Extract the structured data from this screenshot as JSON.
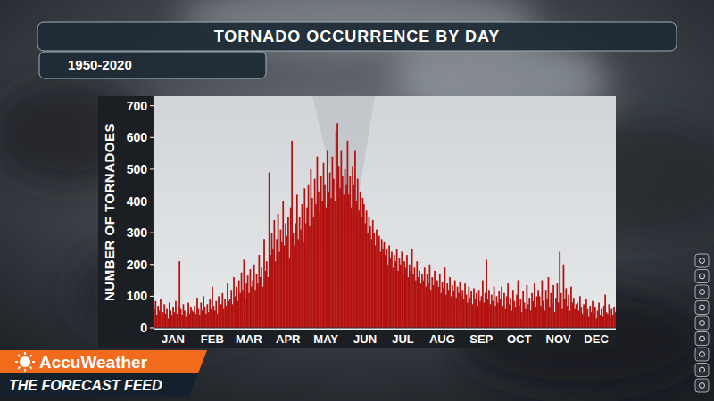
{
  "chart_data": {
    "type": "bar",
    "title": "TORNADO OCCURRENCE BY DAY",
    "subtitle": "1950-2020",
    "y_label": "NUMBER OF TORNADOES",
    "annotations": [
      "AccuWeather",
      "THE FORECAST FEED"
    ],
    "categories": [
      null,
      null,
      null,
      null,
      null,
      null,
      null,
      null,
      null,
      null,
      null,
      null,
      null,
      null,
      null,
      "JAN",
      null,
      null,
      null,
      null,
      null,
      null,
      null,
      null,
      null,
      null,
      null,
      null,
      null,
      null,
      null,
      null,
      null,
      null,
      null,
      null,
      null,
      null,
      null,
      null,
      null,
      null,
      null,
      null,
      null,
      null,
      "FEB",
      null,
      null,
      null,
      null,
      null,
      null,
      null,
      null,
      null,
      null,
      null,
      null,
      null,
      null,
      null,
      null,
      null,
      null,
      null,
      null,
      null,
      null,
      null,
      null,
      null,
      null,
      null,
      null,
      "MAR",
      null,
      null,
      null,
      null,
      null,
      null,
      null,
      null,
      null,
      null,
      null,
      null,
      null,
      null,
      null,
      null,
      null,
      null,
      null,
      null,
      null,
      null,
      null,
      null,
      null,
      null,
      null,
      null,
      null,
      null,
      "APR",
      null,
      null,
      null,
      null,
      null,
      null,
      null,
      null,
      null,
      null,
      null,
      null,
      null,
      null,
      null,
      null,
      null,
      null,
      null,
      null,
      null,
      null,
      null,
      null,
      null,
      null,
      null,
      null,
      null,
      "MAY",
      null,
      null,
      null,
      null,
      null,
      null,
      null,
      null,
      null,
      null,
      null,
      null,
      null,
      null,
      null,
      null,
      null,
      null,
      null,
      null,
      null,
      null,
      null,
      null,
      null,
      null,
      null,
      null,
      null,
      null,
      "JUN",
      null,
      null,
      null,
      null,
      null,
      null,
      null,
      null,
      null,
      null,
      null,
      null,
      null,
      null,
      null,
      null,
      null,
      null,
      null,
      null,
      null,
      null,
      null,
      null,
      null,
      null,
      null,
      null,
      null,
      "JUL",
      null,
      null,
      null,
      null,
      null,
      null,
      null,
      null,
      null,
      null,
      null,
      null,
      null,
      null,
      null,
      null,
      null,
      null,
      null,
      null,
      null,
      null,
      null,
      null,
      null,
      null,
      null,
      null,
      null,
      null,
      "AUG",
      null,
      null,
      null,
      null,
      null,
      null,
      null,
      null,
      null,
      null,
      null,
      null,
      null,
      null,
      null,
      null,
      null,
      null,
      null,
      null,
      null,
      null,
      null,
      null,
      null,
      null,
      null,
      null,
      null,
      null,
      "SEP",
      null,
      null,
      null,
      null,
      null,
      null,
      null,
      null,
      null,
      null,
      null,
      null,
      null,
      null,
      null,
      null,
      null,
      null,
      null,
      null,
      null,
      null,
      null,
      null,
      null,
      null,
      null,
      null,
      null,
      "OCT",
      null,
      null,
      null,
      null,
      null,
      null,
      null,
      null,
      null,
      null,
      null,
      null,
      null,
      null,
      null,
      null,
      null,
      null,
      null,
      null,
      null,
      null,
      null,
      null,
      null,
      null,
      null,
      null,
      null,
      null,
      "NOV",
      null,
      null,
      null,
      null,
      null,
      null,
      null,
      null,
      null,
      null,
      null,
      null,
      null,
      null,
      null,
      null,
      null,
      null,
      null,
      null,
      null,
      null,
      null,
      null,
      null,
      null,
      null,
      null,
      null,
      "DEC",
      null,
      null,
      null,
      null,
      null,
      null,
      null,
      null,
      null,
      null,
      null,
      null,
      null,
      null,
      null
    ],
    "values": [
      60,
      85,
      40,
      70,
      55,
      90,
      35,
      50,
      75,
      45,
      60,
      30,
      80,
      55,
      40,
      65,
      50,
      85,
      45,
      70,
      210,
      60,
      40,
      75,
      55,
      35,
      50,
      80,
      45,
      65,
      55,
      50,
      70,
      45,
      95,
      60,
      40,
      80,
      55,
      100,
      65,
      45,
      75,
      50,
      90,
      60,
      130,
      70,
      55,
      85,
      45,
      100,
      65,
      75,
      110,
      60,
      90,
      70,
      140,
      85,
      90,
      120,
      75,
      160,
      100,
      130,
      85,
      150,
      110,
      175,
      120,
      215,
      95,
      140,
      165,
      110,
      185,
      130,
      150,
      200,
      120,
      170,
      140,
      230,
      160,
      190,
      130,
      280,
      180,
      210,
      160,
      490,
      230,
      300,
      250,
      340,
      210,
      280,
      360,
      240,
      310,
      270,
      400,
      260,
      330,
      290,
      350,
      220,
      380,
      590,
      300,
      260,
      330,
      420,
      280,
      350,
      310,
      390,
      270,
      440,
      330,
      380,
      450,
      320,
      500,
      410,
      350,
      470,
      390,
      540,
      430,
      360,
      480,
      400,
      520,
      450,
      380,
      560,
      430,
      490,
      410,
      540,
      470,
      400,
      620,
      645,
      510,
      440,
      560,
      480,
      420,
      500,
      450,
      590,
      420,
      480,
      380,
      510,
      450,
      560,
      400,
      470,
      370,
      430,
      350,
      410,
      390,
      330,
      370,
      300,
      350,
      320,
      280,
      340,
      300,
      260,
      310,
      270,
      290,
      240,
      280,
      250,
      270,
      230,
      250,
      200,
      260,
      220,
      240,
      190,
      230,
      210,
      250,
      180,
      220,
      200,
      240,
      170,
      210,
      190,
      230,
      160,
      200,
      180,
      250,
      170,
      190,
      150,
      210,
      160,
      180,
      140,
      170,
      150,
      190,
      130,
      170,
      140,
      200,
      120,
      160,
      135,
      180,
      115,
      150,
      130,
      170,
      110,
      145,
      125,
      190,
      105,
      140,
      120,
      160,
      100,
      135,
      115,
      150,
      95,
      130,
      110,
      145,
      100,
      120,
      90,
      140,
      105,
      80,
      130,
      95,
      115,
      75,
      125,
      90,
      110,
      70,
      120,
      85,
      100,
      150,
      80,
      110,
      215,
      90,
      120,
      75,
      105,
      85,
      130,
      70,
      100,
      80,
      115,
      90,
      130,
      70,
      110,
      60,
      100,
      140,
      75,
      95,
      55,
      120,
      85,
      65,
      105,
      150,
      70,
      90,
      50,
      115,
      80,
      60,
      135,
      75,
      95,
      55,
      110,
      85,
      140,
      65,
      100,
      120,
      100,
      70,
      150,
      85,
      55,
      120,
      90,
      160,
      65,
      110,
      75,
      135,
      50,
      95,
      140,
      80,
      240,
      110,
      60,
      200,
      90,
      125,
      70,
      105,
      55,
      130,
      80,
      95,
      60,
      75,
      80,
      55,
      100,
      65,
      45,
      75,
      40,
      90,
      60,
      35,
      70,
      50,
      85,
      45,
      65,
      30,
      55,
      80,
      40,
      60,
      35,
      70,
      105,
      50,
      45,
      75,
      35,
      60,
      40,
      65,
      50
    ],
    "color": "#b31210",
    "ylim": [
      0,
      730
    ],
    "yticks": [
      0,
      100,
      200,
      300,
      400,
      500,
      600,
      700
    ],
    "grid": false
  }
}
